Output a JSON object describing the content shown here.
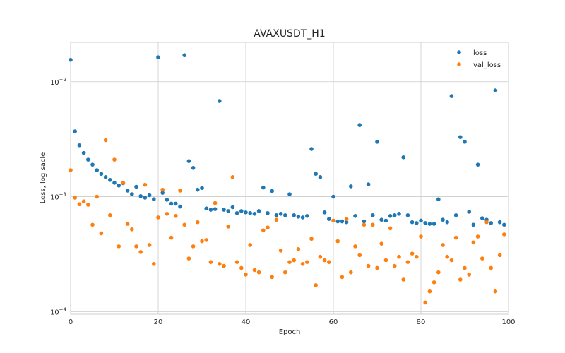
{
  "chart_data": {
    "type": "scatter",
    "title": "AVAXUSDT_H1",
    "xlabel": "Epoch",
    "ylabel": "Loss, log sacle",
    "yscale": "log",
    "xlim": [
      0,
      100
    ],
    "ylim": [
      9.5e-05,
      0.022
    ],
    "xticks": [
      0,
      20,
      40,
      60,
      80,
      100
    ],
    "yticks": [
      {
        "value": 0.0001,
        "base": "10",
        "exp": "−4"
      },
      {
        "value": 0.001,
        "base": "10",
        "exp": "−3"
      },
      {
        "value": 0.01,
        "base": "10",
        "exp": "−2"
      }
    ],
    "legend_position": "top-right",
    "series": [
      {
        "name": "loss",
        "color": "#1f77b4",
        "x": [
          0,
          1,
          2,
          3,
          4,
          5,
          6,
          7,
          8,
          9,
          10,
          11,
          12,
          13,
          14,
          15,
          16,
          17,
          18,
          19,
          20,
          21,
          22,
          23,
          24,
          25,
          26,
          27,
          28,
          29,
          30,
          31,
          32,
          33,
          34,
          35,
          36,
          37,
          38,
          39,
          40,
          41,
          42,
          43,
          44,
          45,
          46,
          47,
          48,
          49,
          50,
          51,
          52,
          53,
          54,
          55,
          56,
          57,
          58,
          59,
          60,
          61,
          62,
          63,
          64,
          65,
          66,
          67,
          68,
          69,
          70,
          71,
          72,
          73,
          74,
          75,
          76,
          77,
          78,
          79,
          80,
          81,
          82,
          83,
          84,
          85,
          86,
          87,
          88,
          89,
          90,
          91,
          92,
          93,
          94,
          95,
          96,
          97,
          98,
          99
        ],
        "values": [
          0.0155,
          0.0037,
          0.0028,
          0.0024,
          0.0021,
          0.0019,
          0.0017,
          0.00158,
          0.00148,
          0.0014,
          0.00132,
          0.00125,
          0.00131,
          0.00113,
          0.00105,
          0.00122,
          0.00101,
          0.00098,
          0.00103,
          0.00095,
          0.0163,
          0.00108,
          0.00094,
          0.00087,
          0.00087,
          0.00082,
          0.017,
          0.00204,
          0.00178,
          0.00115,
          0.00119,
          0.00079,
          0.00077,
          0.00078,
          0.0068,
          0.00077,
          0.00075,
          0.00081,
          0.00072,
          0.00075,
          0.00073,
          0.00072,
          0.00071,
          0.00075,
          0.0012,
          0.00072,
          0.00112,
          0.00069,
          0.00071,
          0.00069,
          0.00105,
          0.00069,
          0.00067,
          0.00066,
          0.00068,
          0.0026,
          0.00158,
          0.00148,
          0.00073,
          0.00064,
          0.001,
          0.00061,
          0.00061,
          0.0006,
          0.00123,
          0.00068,
          0.0042,
          0.00061,
          0.00128,
          0.00069,
          0.003,
          0.00063,
          0.00062,
          0.00068,
          0.00069,
          0.00071,
          0.0022,
          0.00069,
          0.0006,
          0.00059,
          0.00062,
          0.00059,
          0.00058,
          0.00058,
          0.00095,
          0.00063,
          0.0006,
          0.0075,
          0.00069,
          0.0033,
          0.003,
          0.00074,
          0.00057,
          0.0019,
          0.00065,
          0.00063,
          0.00059,
          0.0084,
          0.0006,
          0.00057
        ]
      },
      {
        "name": "val_loss",
        "color": "#ff7f0e",
        "x": [
          0,
          1,
          2,
          3,
          4,
          5,
          6,
          7,
          8,
          9,
          10,
          11,
          12,
          13,
          14,
          15,
          16,
          17,
          18,
          19,
          20,
          21,
          22,
          23,
          24,
          25,
          26,
          27,
          28,
          29,
          30,
          31,
          32,
          33,
          34,
          35,
          36,
          37,
          38,
          39,
          40,
          41,
          42,
          43,
          44,
          45,
          46,
          47,
          48,
          49,
          50,
          51,
          52,
          53,
          54,
          55,
          56,
          57,
          58,
          59,
          60,
          61,
          62,
          63,
          64,
          65,
          66,
          67,
          68,
          69,
          70,
          71,
          72,
          73,
          74,
          75,
          76,
          77,
          78,
          79,
          80,
          81,
          82,
          83,
          84,
          85,
          86,
          87,
          88,
          89,
          90,
          91,
          92,
          93,
          94,
          95,
          96,
          97,
          98,
          99
        ],
        "values": [
          0.0017,
          0.00098,
          0.00086,
          0.00091,
          0.00085,
          0.00057,
          0.001,
          0.00048,
          0.0031,
          0.00069,
          0.0021,
          0.00037,
          0.00132,
          0.00058,
          0.00052,
          0.00037,
          0.00033,
          0.00127,
          0.00038,
          0.00026,
          0.00066,
          0.00115,
          0.00071,
          0.00044,
          0.00068,
          0.00113,
          0.00057,
          0.00029,
          0.00037,
          0.0006,
          0.00041,
          0.00042,
          0.00027,
          0.00088,
          0.00026,
          0.00025,
          0.00055,
          0.00148,
          0.00027,
          0.00024,
          0.00021,
          0.00038,
          0.00023,
          0.00022,
          0.00051,
          0.00054,
          0.0002,
          0.00063,
          0.00034,
          0.00022,
          0.00027,
          0.00028,
          0.00035,
          0.00026,
          0.00027,
          0.00043,
          0.00017,
          0.0003,
          0.00028,
          0.00027,
          0.00062,
          0.00041,
          0.0002,
          0.00064,
          0.00022,
          0.00037,
          0.00031,
          0.00057,
          0.00025,
          0.00057,
          0.00024,
          0.00039,
          0.00028,
          0.00053,
          0.00025,
          0.0003,
          0.00019,
          0.00027,
          0.00032,
          0.0003,
          0.00045,
          0.00012,
          0.00015,
          0.00018,
          0.00022,
          0.00038,
          0.0003,
          0.00028,
          0.00044,
          0.00019,
          0.00024,
          0.00021,
          0.0004,
          0.00045,
          0.00029,
          0.0006,
          0.00024,
          0.00015,
          0.00031,
          0.00047
        ]
      }
    ]
  }
}
